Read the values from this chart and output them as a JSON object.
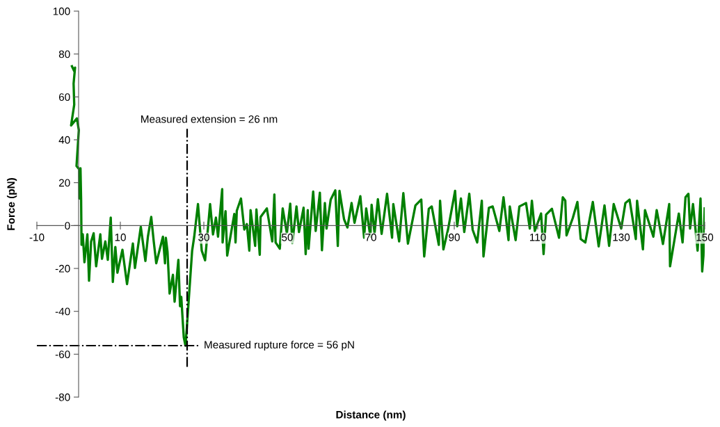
{
  "chart_data": {
    "type": "line",
    "xlabel": "Distance (nm)",
    "ylabel": "Force (pN)",
    "xlim": [
      -10,
      150
    ],
    "xticks": [
      -10,
      10,
      30,
      50,
      70,
      90,
      110,
      130,
      150
    ],
    "ylim": [
      -80,
      100
    ],
    "yticks": [
      -80,
      -60,
      -40,
      -20,
      0,
      20,
      40,
      60,
      80,
      100
    ],
    "grid": false,
    "legend": false,
    "marker": "none",
    "line_style": "solid",
    "ref_lines": [
      {
        "axis": "x",
        "value": 26,
        "color": "#000000",
        "line_style": "dashdot"
      },
      {
        "axis": "y",
        "value": -56,
        "color": "#000000",
        "line_style": "dashdot"
      }
    ],
    "annotations": [
      "Measured extension = 26 nm",
      "Measured rupture force = 56 pN"
    ],
    "series": [
      {
        "color": "#008000",
        "x": [
          -1.6,
          -0.95,
          -0.85,
          -1.2,
          -1.05,
          -1.8,
          -0.4,
          0.05,
          -0.5,
          0.15,
          0.2,
          0.45,
          0.6,
          0.7,
          1.0,
          1.4,
          2.1,
          2.5,
          3.0,
          3.6,
          4.2,
          5.2,
          5.6,
          6.4,
          7.0,
          7.7,
          8.2,
          8.8,
          9.3,
          10.5,
          11.6,
          13.0,
          13.5,
          14.9,
          16.0,
          16.6,
          17.4,
          18.0,
          18.6,
          20.2,
          20.7,
          20.9,
          21.3,
          21.8,
          22.6,
          23.0,
          23.9,
          24.3,
          24.6,
          24.9,
          25.2,
          25.6,
          25.9,
          27.2,
          27.7,
          28.6,
          29.5,
          30.3,
          31.5,
          32.2,
          32.9,
          33.4,
          34.4,
          34.5,
          35.2,
          35.6,
          37.3,
          37.6,
          37.9,
          38.9,
          39.7,
          40.3,
          40.9,
          41.2,
          42.3,
          42.6,
          43.4,
          43.6,
          45.1,
          46.4,
          46.9,
          47.2,
          48.2,
          48.9,
          49.9,
          50.7,
          51.2,
          52.2,
          52.8,
          53.9,
          54.4,
          54.9,
          55.1,
          56.2,
          56.8,
          57.8,
          58.3,
          59.0,
          59.4,
          60.4,
          61.5,
          62.1,
          62.5,
          63.6,
          64.4,
          65.4,
          66.1,
          67.5,
          68.4,
          68.9,
          69.9,
          70.2,
          70.9,
          71.7,
          72.6,
          73.9,
          75.1,
          75.4,
          76.8,
          77.8,
          78.9,
          80.7,
          82.1,
          82.8,
          83.9,
          84.6,
          86.3,
          86.6,
          87.4,
          88.5,
          90.2,
          90.7,
          91.6,
          92.4,
          93.6,
          94.4,
          95.5,
          96.6,
          97.0,
          98.3,
          99.2,
          100.8,
          101.8,
          103.0,
          103.3,
          104.7,
          105.6,
          107.2,
          108.1,
          108.6,
          109.3,
          110.8,
          111.4,
          112.0,
          113.4,
          115.1,
          116.0,
          116.6,
          116.9,
          118.4,
          119.5,
          120.3,
          121.4,
          123.2,
          124.6,
          126.0,
          127.1,
          128.2,
          130.0,
          131.0,
          132.0,
          133.5,
          133.8,
          135.2,
          135.7,
          137.7,
          138.5,
          140.0,
          141.5,
          141.7,
          143.8,
          144.7,
          145.4,
          146.1,
          146.5,
          147.2,
          148.3,
          149.0,
          149.4,
          149.7,
          150.0
        ],
        "values": [
          74.3,
          71.6,
          73.7,
          66.2,
          56.4,
          46.7,
          50,
          44.5,
          27.8,
          26.2,
          12.6,
          26.7,
          12.1,
          -9,
          -4.1,
          -17.1,
          -4.1,
          -25.7,
          -7.4,
          -3.6,
          -19,
          -4.1,
          -15.5,
          -7.4,
          -16,
          3.7,
          -26.3,
          -10,
          -22,
          -11.3,
          -27.3,
          -8.4,
          -19.8,
          -0.6,
          -16.5,
          -5.2,
          4.0,
          -7.4,
          -17.6,
          -5.2,
          -17.6,
          -5.7,
          -12.2,
          -31.7,
          -23,
          -35.5,
          -16,
          -37.6,
          -33.3,
          -43,
          -52.2,
          -56,
          -48.4,
          -11.7,
          -5.2,
          10,
          -11.7,
          -16.2,
          10,
          -4.1,
          3.7,
          -5.2,
          17,
          -7.9,
          6.7,
          -14,
          5.4,
          -7.9,
          6.9,
          12.6,
          -1.9,
          0.7,
          -11.7,
          7.2,
          -9.5,
          7.5,
          -13.6,
          4,
          8,
          -7.4,
          14.5,
          -7.9,
          -10.8,
          8,
          -3.6,
          10.2,
          -8.2,
          8.9,
          -3,
          8.3,
          -13.3,
          7.2,
          -10.8,
          15.9,
          -2.5,
          15.3,
          -11.5,
          10.5,
          -1.4,
          12.1,
          16.4,
          -9.5,
          16.2,
          2.9,
          -0.9,
          10.5,
          1.3,
          13.7,
          -5.7,
          8,
          -5.2,
          9.7,
          -3.6,
          12.3,
          -3.9,
          14.8,
          -5.7,
          10,
          -7.4,
          15.1,
          -8.4,
          9.4,
          12.1,
          -14.4,
          7.8,
          8.9,
          -9,
          11.6,
          -11.1,
          -1.9,
          16.2,
          -0.3,
          12.6,
          -3,
          14.8,
          -1.9,
          -7.9,
          11.6,
          -14.4,
          8.3,
          8.9,
          -2.5,
          13.2,
          -6.8,
          8.9,
          -6.8,
          8.9,
          10.5,
          -1.4,
          11.6,
          -2.5,
          5.6,
          -13.3,
          5.1,
          7.8,
          -5.7,
          13.2,
          11.6,
          -4.6,
          3.5,
          11,
          -6.3,
          -7.9,
          11,
          -9.7,
          9.4,
          -9.5,
          10,
          -1.4,
          10.5,
          12.1,
          -6.3,
          11.6,
          -11.1,
          7.2,
          -5.2,
          7.2,
          -8.6,
          10,
          -19,
          5.6,
          -7.9,
          13.2,
          14.8,
          -1.4,
          10,
          -11.7,
          12.6,
          -21.4,
          -14,
          8
        ]
      }
    ]
  }
}
